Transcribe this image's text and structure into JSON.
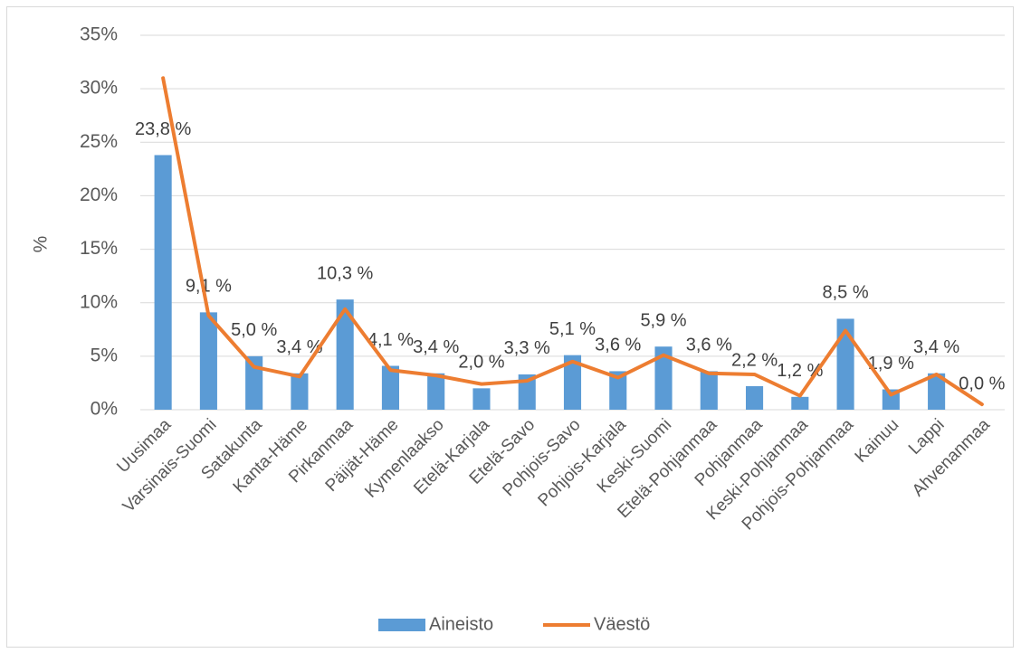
{
  "chart_data": {
    "type": "bar",
    "y_label": "%",
    "categories": [
      "Uusimaa",
      "Varsinais-Suomi",
      "Satakunta",
      "Kanta-Häme",
      "Pirkanmaa",
      "Päijät-Häme",
      "Kymenlaakso",
      "Etelä-Karjala",
      "Etelä-Savo",
      "Pohjois-Savo",
      "Pohjois-Karjala",
      "Keski-Suomi",
      "Etelä-Pohjanmaa",
      "Pohjanmaa",
      "Keski-Pohjanmaa",
      "Pohjois-Pohjanmaa",
      "Kainuu",
      "Lappi",
      "Ahvenanmaa"
    ],
    "series": [
      {
        "name": "Aineisto",
        "type": "bar",
        "color": "#5b9bd5",
        "values": [
          23.8,
          9.1,
          5.0,
          3.4,
          10.3,
          4.1,
          3.4,
          2.0,
          3.3,
          5.1,
          3.6,
          5.9,
          3.6,
          2.2,
          1.2,
          8.5,
          1.9,
          3.4,
          0.0
        ],
        "value_labels": [
          "23,8 %",
          "9,1 %",
          "5,0 %",
          "3,4 %",
          "10,3 %",
          "4,1 %",
          "3,4 %",
          "2,0 %",
          "3,3 %",
          "5,1 %",
          "3,6 %",
          "5,9 %",
          "3,6 %",
          "2,2 %",
          "1,2 %",
          "8,5 %",
          "1,9 %",
          "3,4 %",
          "0,0 %"
        ]
      },
      {
        "name": "Väestö",
        "type": "line",
        "color": "#ed7d31",
        "values": [
          31.0,
          8.8,
          4.0,
          3.1,
          9.4,
          3.7,
          3.2,
          2.4,
          2.7,
          4.5,
          3.0,
          5.1,
          3.4,
          3.3,
          1.3,
          7.4,
          1.4,
          3.3,
          0.5
        ]
      }
    ],
    "ylim": [
      0,
      35
    ],
    "yticks": [
      {
        "value": 0,
        "label": "0%"
      },
      {
        "value": 5,
        "label": "5%"
      },
      {
        "value": 10,
        "label": "10%"
      },
      {
        "value": 15,
        "label": "15%"
      },
      {
        "value": 20,
        "label": "20%"
      },
      {
        "value": 25,
        "label": "25%"
      },
      {
        "value": 30,
        "label": "30%"
      },
      {
        "value": 35,
        "label": "35%"
      }
    ],
    "grid": true,
    "legend": "bottom"
  }
}
